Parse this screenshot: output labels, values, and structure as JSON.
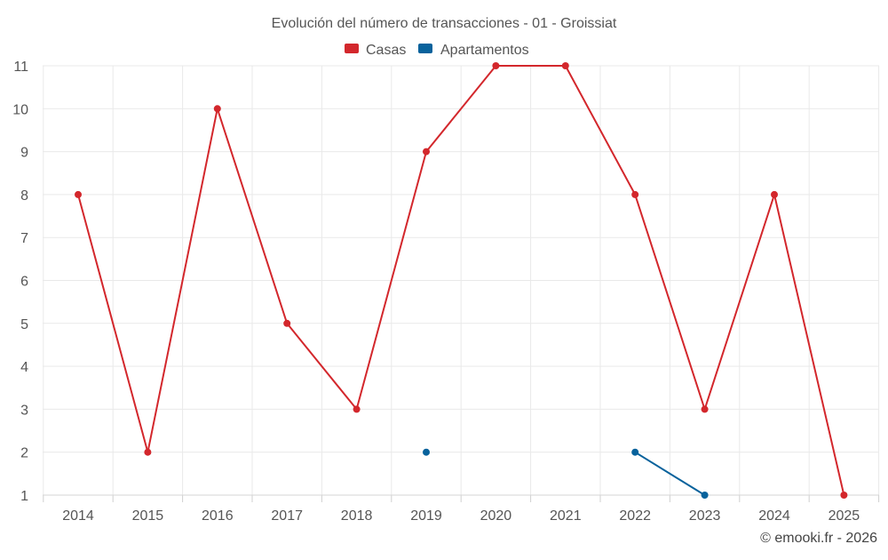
{
  "chart_data": {
    "type": "line",
    "title": "Evolución del número de transacciones - 01 - Groissiat",
    "categories": [
      "2014",
      "2015",
      "2016",
      "2017",
      "2018",
      "2019",
      "2020",
      "2021",
      "2022",
      "2023",
      "2024",
      "2025"
    ],
    "series": [
      {
        "name": "Casas",
        "color": "#d3272c",
        "values": [
          8,
          2,
          10,
          5,
          3,
          9,
          11,
          11,
          8,
          3,
          8,
          1
        ]
      },
      {
        "name": "Apartamentos",
        "color": "#08629c",
        "values": [
          null,
          null,
          null,
          null,
          null,
          2,
          null,
          null,
          2,
          1,
          null,
          null
        ]
      }
    ],
    "y_ticks": [
      "1",
      "2",
      "3",
      "4",
      "5",
      "6",
      "7",
      "8",
      "9",
      "10",
      "11"
    ],
    "ylim": [
      1,
      11
    ],
    "xlabel": "",
    "ylabel": "",
    "grid": true,
    "legend_position": "top-center"
  },
  "credit": "© emooki.fr - 2026"
}
